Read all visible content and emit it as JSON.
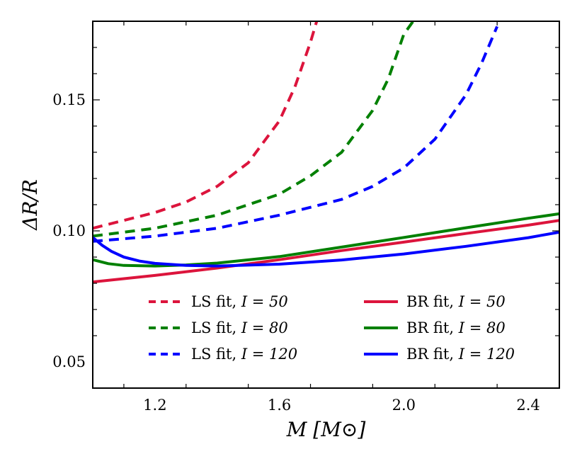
{
  "chart_data": {
    "type": "line",
    "title": "",
    "xlabel": "M [M⊙]",
    "ylabel": "ΔR/R",
    "xlim": [
      1.0,
      2.5
    ],
    "ylim": [
      0.04,
      0.18
    ],
    "x_ticks": [
      1.2,
      1.6,
      2.0,
      2.4
    ],
    "x_tick_labels": [
      "1.2",
      "1.6",
      "2.0",
      "2.4"
    ],
    "y_ticks": [
      0.05,
      0.1,
      0.15
    ],
    "y_tick_labels": [
      "0.05",
      "0.10",
      "0.15"
    ],
    "legend_position": "lower-center",
    "series": [
      {
        "name": "LS fit, I = 50",
        "label_prefix": "LS fit,",
        "label_eq": "I = 50",
        "style": "dashed",
        "color": "#dc143c",
        "x": [
          1.0,
          1.1,
          1.2,
          1.3,
          1.4,
          1.5,
          1.6,
          1.65,
          1.7,
          1.72
        ],
        "y": [
          0.101,
          0.104,
          0.107,
          0.111,
          0.117,
          0.126,
          0.142,
          0.155,
          0.172,
          0.18
        ]
      },
      {
        "name": "LS fit, I = 80",
        "label_prefix": "LS fit,",
        "label_eq": "I = 80",
        "style": "dashed",
        "color": "#008000",
        "x": [
          1.0,
          1.2,
          1.4,
          1.6,
          1.7,
          1.8,
          1.9,
          1.95,
          2.0,
          2.03
        ],
        "y": [
          0.098,
          0.101,
          0.106,
          0.114,
          0.121,
          0.13,
          0.146,
          0.158,
          0.175,
          0.18
        ]
      },
      {
        "name": "LS fit, I = 120",
        "label_prefix": "LS fit,",
        "label_eq": "I = 120",
        "style": "dashed",
        "color": "#0000ff",
        "x": [
          1.0,
          1.2,
          1.4,
          1.6,
          1.8,
          1.9,
          2.0,
          2.1,
          2.2,
          2.25,
          2.3
        ],
        "y": [
          0.096,
          0.098,
          0.101,
          0.106,
          0.112,
          0.117,
          0.124,
          0.135,
          0.152,
          0.164,
          0.178
        ]
      },
      {
        "name": "BR fit, I = 50",
        "label_prefix": "BR fit,",
        "label_eq": "I = 50",
        "style": "solid",
        "color": "#dc143c",
        "x": [
          1.0,
          1.2,
          1.4,
          1.6,
          1.8,
          2.0,
          2.2,
          2.4,
          2.5
        ],
        "y": [
          0.0805,
          0.083,
          0.0858,
          0.089,
          0.0925,
          0.0957,
          0.099,
          0.1022,
          0.104
        ]
      },
      {
        "name": "BR fit, I = 80",
        "label_prefix": "BR fit,",
        "label_eq": "I = 80",
        "style": "solid",
        "color": "#008000",
        "x": [
          1.0,
          1.05,
          1.1,
          1.2,
          1.3,
          1.4,
          1.6,
          1.8,
          2.0,
          2.2,
          2.4,
          2.5
        ],
        "y": [
          0.089,
          0.0875,
          0.0868,
          0.0866,
          0.087,
          0.0877,
          0.0902,
          0.0938,
          0.0975,
          0.1012,
          0.1048,
          0.1065
        ]
      },
      {
        "name": "BR fit, I = 120",
        "label_prefix": "BR fit,",
        "label_eq": "I = 120",
        "style": "solid",
        "color": "#0000ff",
        "x": [
          1.0,
          1.03,
          1.06,
          1.1,
          1.15,
          1.2,
          1.3,
          1.4,
          1.6,
          1.8,
          2.0,
          2.2,
          2.4,
          2.5
        ],
        "y": [
          0.0975,
          0.0945,
          0.0922,
          0.09,
          0.0885,
          0.0876,
          0.0868,
          0.0866,
          0.0873,
          0.0889,
          0.0912,
          0.0941,
          0.0974,
          0.0995
        ]
      }
    ]
  }
}
